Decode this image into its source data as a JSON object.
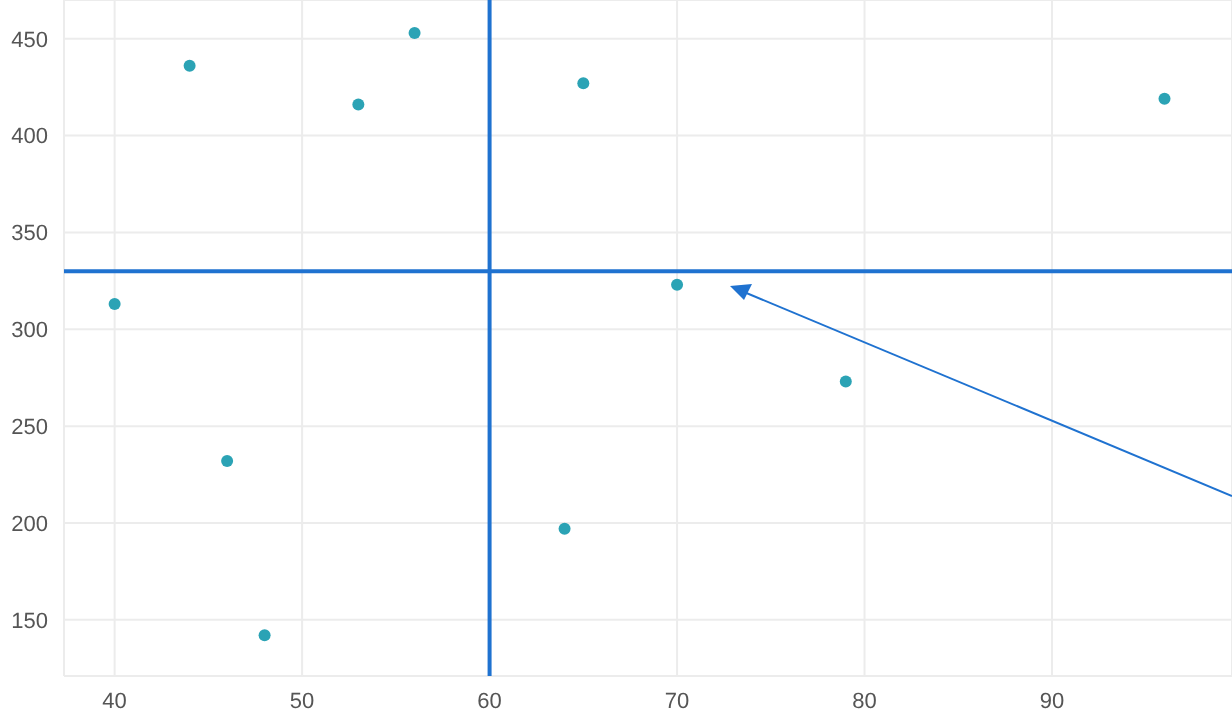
{
  "chart_data": {
    "type": "scatter",
    "x": [
      40,
      44,
      46,
      48,
      53,
      56,
      64,
      65,
      70,
      79,
      96
    ],
    "series": [
      {
        "color": "#2ba3b5",
        "values": [
          313,
          436,
          232,
          142,
          416,
          453,
          197,
          427,
          323,
          273,
          419
        ]
      }
    ],
    "xlim": [
      37.3,
      99.6
    ],
    "ylim": [
      121,
      470
    ],
    "xticks": [
      40,
      50,
      60,
      70,
      80,
      90
    ],
    "yticks": [
      150,
      200,
      250,
      300,
      350,
      400,
      450
    ],
    "grid": true,
    "marker": "circle",
    "ref_lines": [
      {
        "axis": "x",
        "value": 60,
        "color": "#1f72d0"
      },
      {
        "axis": "y",
        "value": 330,
        "color": "#1f72d0"
      }
    ]
  }
}
